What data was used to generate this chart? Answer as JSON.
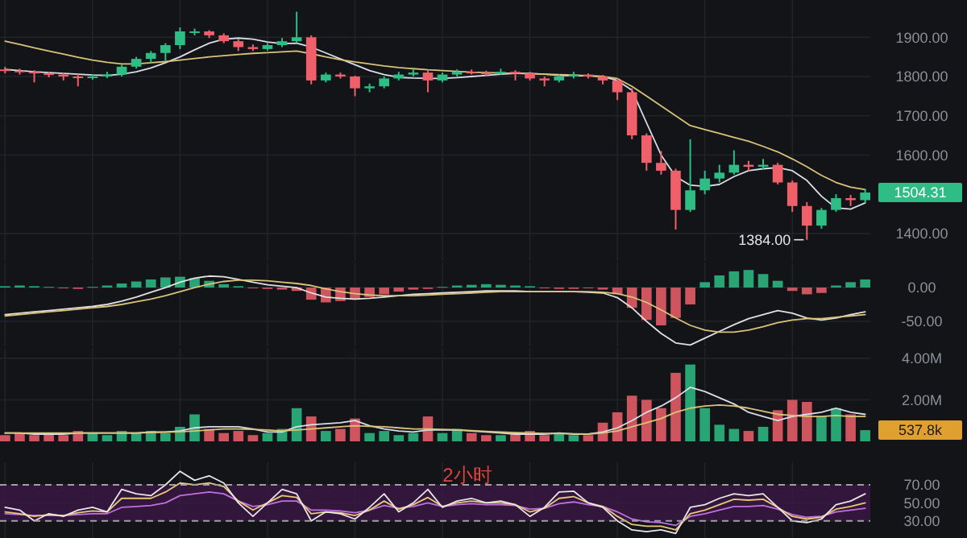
{
  "chart_data": [
    {
      "type": "candlestick",
      "categories": [
        null,
        null,
        null,
        null,
        null,
        null,
        null,
        null,
        null,
        null,
        null,
        null,
        null,
        null,
        null,
        null,
        null,
        null,
        null,
        null,
        null,
        null,
        null,
        null,
        null,
        null,
        null,
        null,
        null,
        null,
        null,
        null,
        null,
        null,
        null,
        null,
        null,
        null,
        null,
        null,
        null,
        null,
        null,
        null,
        null,
        null,
        null,
        null,
        null,
        null,
        null,
        null,
        null,
        null,
        null,
        null,
        null,
        null,
        null,
        null
      ],
      "ohlc": [
        [
          1818,
          1825,
          1808,
          1815
        ],
        [
          1815,
          1820,
          1805,
          1812
        ],
        [
          1812,
          1816,
          1785,
          1808
        ],
        [
          1808,
          1812,
          1798,
          1805
        ],
        [
          1805,
          1810,
          1790,
          1800
        ],
        [
          1800,
          1806,
          1775,
          1798
        ],
        [
          1798,
          1806,
          1792,
          1800
        ],
        [
          1800,
          1812,
          1796,
          1805
        ],
        [
          1805,
          1830,
          1800,
          1825
        ],
        [
          1825,
          1850,
          1820,
          1845
        ],
        [
          1845,
          1865,
          1835,
          1860
        ],
        [
          1860,
          1885,
          1840,
          1880
        ],
        [
          1880,
          1925,
          1870,
          1915
        ],
        [
          1915,
          1922,
          1905,
          1915
        ],
        [
          1915,
          1918,
          1898,
          1905
        ],
        [
          1905,
          1910,
          1885,
          1890
        ],
        [
          1890,
          1895,
          1865,
          1875
        ],
        [
          1875,
          1882,
          1865,
          1870
        ],
        [
          1870,
          1885,
          1866,
          1880
        ],
        [
          1880,
          1898,
          1875,
          1890
        ],
        [
          1890,
          1965,
          1885,
          1900
        ],
        [
          1900,
          1905,
          1780,
          1790
        ],
        [
          1790,
          1810,
          1785,
          1805
        ],
        [
          1805,
          1810,
          1795,
          1800
        ],
        [
          1800,
          1802,
          1750,
          1770
        ],
        [
          1770,
          1782,
          1760,
          1775
        ],
        [
          1775,
          1800,
          1770,
          1795
        ],
        [
          1795,
          1812,
          1790,
          1805
        ],
        [
          1805,
          1820,
          1800,
          1810
        ],
        [
          1810,
          1815,
          1760,
          1790
        ],
        [
          1790,
          1810,
          1785,
          1805
        ],
        [
          1805,
          1818,
          1800,
          1812
        ],
        [
          1812,
          1818,
          1805,
          1810
        ],
        [
          1810,
          1815,
          1802,
          1808
        ],
        [
          1808,
          1820,
          1805,
          1812
        ],
        [
          1812,
          1816,
          1790,
          1808
        ],
        [
          1808,
          1812,
          1790,
          1795
        ],
        [
          1795,
          1800,
          1775,
          1790
        ],
        [
          1790,
          1805,
          1785,
          1800
        ],
        [
          1800,
          1812,
          1795,
          1805
        ],
        [
          1805,
          1808,
          1795,
          1800
        ],
        [
          1800,
          1804,
          1780,
          1790
        ],
        [
          1790,
          1795,
          1740,
          1760
        ],
        [
          1760,
          1770,
          1640,
          1650
        ],
        [
          1650,
          1655,
          1560,
          1580
        ],
        [
          1580,
          1610,
          1550,
          1560
        ],
        [
          1560,
          1565,
          1410,
          1460
        ],
        [
          1460,
          1640,
          1455,
          1510
        ],
        [
          1510,
          1560,
          1500,
          1540
        ],
        [
          1540,
          1575,
          1530,
          1555
        ],
        [
          1555,
          1612,
          1550,
          1575
        ],
        [
          1575,
          1585,
          1560,
          1570
        ],
        [
          1570,
          1590,
          1562,
          1575
        ],
        [
          1575,
          1580,
          1525,
          1530
        ],
        [
          1530,
          1535,
          1455,
          1470
        ],
        [
          1470,
          1480,
          1384,
          1420
        ],
        [
          1420,
          1465,
          1412,
          1460
        ],
        [
          1460,
          1500,
          1455,
          1490
        ],
        [
          1490,
          1498,
          1470,
          1485
        ],
        [
          1485,
          1512,
          1478,
          1504.31
        ]
      ],
      "colors": [
        "#f0606b",
        "#f0606b",
        "#f0606b",
        "#f0606b",
        "#f0606b",
        "#f0606b",
        "#2ebd85",
        "#2ebd85",
        "#2ebd85",
        "#2ebd85",
        "#2ebd85",
        "#2ebd85",
        "#2ebd85",
        "#2ebd85",
        "#f0606b",
        "#f0606b",
        "#f0606b",
        "#f0606b",
        "#2ebd85",
        "#2ebd85",
        "#2ebd85",
        "#f0606b",
        "#2ebd85",
        "#f0606b",
        "#f0606b",
        "#2ebd85",
        "#2ebd85",
        "#2ebd85",
        "#2ebd85",
        "#f0606b",
        "#2ebd85",
        "#2ebd85",
        "#f0606b",
        "#f0606b",
        "#2ebd85",
        "#f0606b",
        "#f0606b",
        "#f0606b",
        "#2ebd85",
        "#2ebd85",
        "#f0606b",
        "#f0606b",
        "#f0606b",
        "#f0606b",
        "#f0606b",
        "#f0606b",
        "#f0606b",
        "#2ebd85",
        "#2ebd85",
        "#2ebd85",
        "#2ebd85",
        "#f0606b",
        "#2ebd85",
        "#f0606b",
        "#f0606b",
        "#f0606b",
        "#2ebd85",
        "#2ebd85",
        "#f0606b",
        "#2ebd85"
      ],
      "series": [
        {
          "type": "line",
          "color": "#d8dde6",
          "values": [
            1818,
            1815,
            1812,
            1810,
            1808,
            1806,
            1804,
            1803,
            1806,
            1812,
            1822,
            1835,
            1850,
            1868,
            1885,
            1895,
            1898,
            1895,
            1888,
            1884,
            1885,
            1875,
            1860,
            1845,
            1830,
            1815,
            1805,
            1798,
            1796,
            1795,
            1795,
            1797,
            1800,
            1803,
            1806,
            1808,
            1808,
            1806,
            1803,
            1802,
            1802,
            1800,
            1790,
            1765,
            1682,
            1600,
            1545,
            1523,
            1520,
            1525,
            1545,
            1560,
            1565,
            1568,
            1560,
            1535,
            1495,
            1465,
            1462,
            1478
          ]
        },
        {
          "type": "line",
          "color": "#d9c27a",
          "values": [
            1890,
            1882,
            1873,
            1865,
            1857,
            1849,
            1842,
            1836,
            1832,
            1832,
            1835,
            1838,
            1842,
            1846,
            1850,
            1853,
            1856,
            1859,
            1861,
            1863,
            1865,
            1858,
            1850,
            1843,
            1837,
            1832,
            1827,
            1823,
            1820,
            1817,
            1815,
            1813,
            1811,
            1810,
            1809,
            1808,
            1807,
            1806,
            1805,
            1804,
            1802,
            1800,
            1795,
            1775,
            1750,
            1725,
            1700,
            1675,
            1665,
            1655,
            1645,
            1635,
            1622,
            1608,
            1590,
            1570,
            1548,
            1530,
            1518,
            1512
          ]
        }
      ],
      "ylim": [
        1330,
        1995
      ],
      "yticks": [
        {
          "value": 1400,
          "label": "1400.00"
        },
        {
          "value": 1600,
          "label": "1600.00"
        },
        {
          "value": 1700,
          "label": "1700.00"
        },
        {
          "value": 1800,
          "label": "1800.00"
        },
        {
          "value": 1900,
          "label": "1900.00"
        }
      ],
      "grid": true,
      "annotations": [
        "1504.31",
        "1384.00"
      ]
    },
    {
      "type": "bar",
      "categories": [
        null,
        null,
        null,
        null,
        null,
        null,
        null,
        null,
        null,
        null,
        null,
        null,
        null,
        null,
        null,
        null,
        null,
        null,
        null,
        null,
        null,
        null,
        null,
        null,
        null,
        null,
        null,
        null,
        null,
        null,
        null,
        null,
        null,
        null,
        null,
        null,
        null,
        null,
        null,
        null,
        null,
        null,
        null,
        null,
        null,
        null,
        null,
        null,
        null,
        null,
        null,
        null,
        null,
        null,
        null,
        null,
        null,
        null,
        null,
        null
      ],
      "series": [
        {
          "type": "bar",
          "values": [
            2,
            3,
            2,
            1,
            -1,
            -2,
            1,
            3,
            6,
            9,
            12,
            15,
            16,
            14,
            10,
            5,
            2,
            -1,
            -2,
            -3,
            -5,
            -18,
            -22,
            -20,
            -18,
            -14,
            -10,
            -6,
            -3,
            -2,
            1,
            3,
            4,
            5,
            4,
            3,
            2,
            -1,
            -2,
            -2,
            -1,
            -3,
            -10,
            -30,
            -48,
            -56,
            -45,
            -25,
            8,
            18,
            24,
            26,
            20,
            10,
            -5,
            -10,
            -8,
            3,
            8,
            12
          ],
          "colors": [
            "#2ebd85",
            "#2ebd85",
            "#2ebd85",
            "#2ebd85",
            "#f0606b",
            "#f0606b",
            "#2ebd85",
            "#2ebd85",
            "#2ebd85",
            "#2ebd85",
            "#2ebd85",
            "#2ebd85",
            "#2ebd85",
            "#2ebd85",
            "#2ebd85",
            "#2ebd85",
            "#2ebd85",
            "#f0606b",
            "#f0606b",
            "#f0606b",
            "#f0606b",
            "#f0606b",
            "#f0606b",
            "#f0606b",
            "#f0606b",
            "#f0606b",
            "#f0606b",
            "#f0606b",
            "#f0606b",
            "#f0606b",
            "#2ebd85",
            "#2ebd85",
            "#2ebd85",
            "#2ebd85",
            "#2ebd85",
            "#2ebd85",
            "#2ebd85",
            "#f0606b",
            "#f0606b",
            "#f0606b",
            "#f0606b",
            "#f0606b",
            "#f0606b",
            "#f0606b",
            "#f0606b",
            "#f0606b",
            "#f0606b",
            "#f0606b",
            "#2ebd85",
            "#2ebd85",
            "#2ebd85",
            "#2ebd85",
            "#2ebd85",
            "#2ebd85",
            "#f0606b",
            "#f0606b",
            "#f0606b",
            "#2ebd85",
            "#2ebd85",
            "#2ebd85"
          ]
        },
        {
          "type": "line",
          "color": "#e0e0e0",
          "values": [
            -40,
            -38,
            -36,
            -34,
            -32,
            -30,
            -28,
            -25,
            -20,
            -14,
            -7,
            0,
            8,
            14,
            17,
            16,
            12,
            8,
            4,
            2,
            0,
            -8,
            -14,
            -16,
            -17,
            -16,
            -14,
            -12,
            -10,
            -9,
            -8,
            -7,
            -6,
            -5,
            -5,
            -5,
            -6,
            -6,
            -6,
            -6,
            -7,
            -8,
            -15,
            -30,
            -50,
            -68,
            -82,
            -85,
            -75,
            -65,
            -55,
            -46,
            -40,
            -34,
            -38,
            -45,
            -48,
            -45,
            -40,
            -36
          ]
        },
        {
          "type": "line",
          "color": "#d9c27a",
          "values": [
            -42,
            -40,
            -38,
            -36,
            -34,
            -32,
            -30,
            -28,
            -25,
            -21,
            -17,
            -12,
            -6,
            0,
            5,
            9,
            11,
            11,
            10,
            8,
            6,
            3,
            -2,
            -6,
            -9,
            -11,
            -12,
            -12,
            -12,
            -11,
            -10,
            -9,
            -8,
            -7,
            -6,
            -6,
            -6,
            -6,
            -6,
            -6,
            -6,
            -7,
            -9,
            -14,
            -22,
            -33,
            -45,
            -56,
            -63,
            -66,
            -66,
            -63,
            -58,
            -52,
            -48,
            -46,
            -46,
            -44,
            -42,
            -40
          ]
        }
      ],
      "ylim": [
        -87,
        37
      ],
      "yticks": [
        {
          "value": -50,
          "label": "-50.00"
        },
        {
          "value": 0,
          "label": "0.00"
        }
      ],
      "grid": true
    },
    {
      "type": "bar",
      "categories": [
        null,
        null,
        null,
        null,
        null,
        null,
        null,
        null,
        null,
        null,
        null,
        null,
        null,
        null,
        null,
        null,
        null,
        null,
        null,
        null,
        null,
        null,
        null,
        null,
        null,
        null,
        null,
        null,
        null,
        null,
        null,
        null,
        null,
        null,
        null,
        null,
        null,
        null,
        null,
        null,
        null,
        null,
        null,
        null,
        null,
        null,
        null,
        null,
        null,
        null,
        null,
        null,
        null,
        null,
        null,
        null,
        null,
        null,
        null,
        null
      ],
      "series": [
        {
          "type": "bar",
          "values": [
            0.3,
            0.4,
            0.3,
            0.4,
            0.3,
            0.5,
            0.4,
            0.3,
            0.5,
            0.4,
            0.5,
            0.4,
            0.7,
            1.3,
            0.6,
            0.4,
            0.5,
            0.3,
            0.4,
            0.6,
            1.6,
            1.2,
            0.5,
            0.6,
            1.1,
            0.4,
            0.5,
            0.3,
            0.4,
            1.2,
            0.4,
            0.6,
            0.4,
            0.3,
            0.3,
            0.4,
            0.5,
            0.3,
            0.4,
            0.3,
            0.3,
            0.9,
            1.4,
            2.2,
            2.0,
            1.6,
            3.3,
            3.7,
            1.6,
            0.8,
            0.6,
            0.5,
            0.7,
            1.5,
            2.0,
            1.9,
            1.2,
            1.6,
            1.3,
            0.54
          ],
          "colors": [
            "#f0606b",
            "#f0606b",
            "#f0606b",
            "#f0606b",
            "#f0606b",
            "#f0606b",
            "#2ebd85",
            "#2ebd85",
            "#2ebd85",
            "#2ebd85",
            "#2ebd85",
            "#2ebd85",
            "#2ebd85",
            "#2ebd85",
            "#f0606b",
            "#f0606b",
            "#f0606b",
            "#f0606b",
            "#2ebd85",
            "#2ebd85",
            "#2ebd85",
            "#f0606b",
            "#2ebd85",
            "#f0606b",
            "#f0606b",
            "#2ebd85",
            "#2ebd85",
            "#2ebd85",
            "#2ebd85",
            "#f0606b",
            "#2ebd85",
            "#2ebd85",
            "#f0606b",
            "#f0606b",
            "#2ebd85",
            "#f0606b",
            "#f0606b",
            "#f0606b",
            "#2ebd85",
            "#2ebd85",
            "#f0606b",
            "#f0606b",
            "#f0606b",
            "#f0606b",
            "#f0606b",
            "#f0606b",
            "#f0606b",
            "#2ebd85",
            "#2ebd85",
            "#2ebd85",
            "#2ebd85",
            "#f0606b",
            "#2ebd85",
            "#f0606b",
            "#f0606b",
            "#f0606b",
            "#2ebd85",
            "#2ebd85",
            "#f0606b",
            "#2ebd85"
          ]
        },
        {
          "type": "line",
          "color": "#d8dde6",
          "values": [
            0.4,
            0.4,
            0.35,
            0.35,
            0.35,
            0.4,
            0.4,
            0.4,
            0.4,
            0.4,
            0.45,
            0.45,
            0.5,
            0.65,
            0.7,
            0.7,
            0.7,
            0.6,
            0.45,
            0.45,
            0.7,
            0.8,
            0.85,
            0.9,
            1.0,
            0.75,
            0.6,
            0.5,
            0.45,
            0.55,
            0.55,
            0.55,
            0.5,
            0.45,
            0.4,
            0.35,
            0.35,
            0.35,
            0.4,
            0.35,
            0.35,
            0.45,
            0.65,
            1.0,
            1.4,
            1.7,
            2.1,
            2.6,
            2.4,
            2.1,
            1.8,
            1.4,
            1.2,
            1.0,
            1.2,
            1.3,
            1.4,
            1.6,
            1.4,
            1.3
          ]
        },
        {
          "type": "line",
          "color": "#d9c27a",
          "values": [
            0.4,
            0.4,
            0.4,
            0.4,
            0.4,
            0.4,
            0.4,
            0.4,
            0.4,
            0.4,
            0.42,
            0.44,
            0.46,
            0.5,
            0.55,
            0.6,
            0.6,
            0.58,
            0.55,
            0.5,
            0.55,
            0.6,
            0.65,
            0.7,
            0.75,
            0.72,
            0.7,
            0.65,
            0.6,
            0.6,
            0.58,
            0.56,
            0.52,
            0.48,
            0.45,
            0.42,
            0.4,
            0.38,
            0.37,
            0.36,
            0.35,
            0.4,
            0.5,
            0.7,
            0.9,
            1.1,
            1.4,
            1.6,
            1.7,
            1.75,
            1.7,
            1.6,
            1.45,
            1.3,
            1.25,
            1.2,
            1.2,
            1.25,
            1.2,
            1.2
          ]
        }
      ],
      "ylim": [
        0,
        4.5
      ],
      "yticks": [
        {
          "value": 2,
          "label": "2.00M"
        },
        {
          "value": 4,
          "label": "4.00M"
        }
      ],
      "grid": true,
      "annotations": [
        "537.8k"
      ]
    },
    {
      "type": "line",
      "categories": [
        null,
        null,
        null,
        null,
        null,
        null,
        null,
        null,
        null,
        null,
        null,
        null,
        null,
        null,
        null,
        null,
        null,
        null,
        null,
        null,
        null,
        null,
        null,
        null,
        null,
        null,
        null,
        null,
        null,
        null,
        null,
        null,
        null,
        null,
        null,
        null,
        null,
        null,
        null,
        null,
        null,
        null,
        null,
        null,
        null,
        null,
        null,
        null,
        null,
        null,
        null,
        null,
        null,
        null,
        null,
        null,
        null,
        null,
        null,
        null
      ],
      "series": [
        {
          "color": "#c070e0",
          "values": [
            38,
            37,
            36,
            36,
            36,
            37,
            38,
            38,
            45,
            46,
            47,
            50,
            58,
            60,
            62,
            60,
            52,
            46,
            48,
            52,
            52,
            42,
            42,
            41,
            39,
            42,
            47,
            44,
            46,
            50,
            46,
            48,
            49,
            48,
            48,
            47,
            43,
            44,
            49,
            51,
            48,
            46,
            40,
            32,
            29,
            28,
            25,
            35,
            38,
            42,
            46,
            46,
            47,
            43,
            37,
            34,
            35,
            40,
            42,
            44
          ]
        },
        {
          "color": "#e8c87a",
          "values": [
            40,
            38,
            35,
            37,
            36,
            39,
            41,
            40,
            55,
            55,
            55,
            62,
            72,
            70,
            72,
            68,
            52,
            42,
            50,
            58,
            56,
            38,
            40,
            39,
            36,
            42,
            52,
            43,
            48,
            56,
            46,
            50,
            52,
            50,
            50,
            48,
            40,
            44,
            55,
            57,
            50,
            46,
            35,
            26,
            24,
            24,
            20,
            38,
            42,
            48,
            54,
            53,
            54,
            45,
            35,
            32,
            34,
            43,
            46,
            50
          ]
        },
        {
          "color": "#e6e6e6",
          "values": [
            45,
            42,
            30,
            38,
            35,
            42,
            45,
            40,
            65,
            60,
            58,
            70,
            85,
            75,
            80,
            72,
            50,
            35,
            50,
            65,
            60,
            30,
            40,
            38,
            32,
            45,
            60,
            40,
            50,
            65,
            45,
            52,
            55,
            50,
            52,
            48,
            35,
            45,
            62,
            63,
            50,
            45,
            30,
            20,
            18,
            20,
            16,
            45,
            48,
            55,
            60,
            58,
            60,
            45,
            30,
            28,
            32,
            48,
            52,
            60
          ]
        }
      ],
      "ylim": [
        11,
        95
      ],
      "yticks": [
        {
          "value": 30,
          "label": "30.00"
        },
        {
          "value": 50,
          "label": "50.00"
        },
        {
          "value": 70,
          "label": "70.00"
        }
      ],
      "grid": true,
      "bands": [
        {
          "axis": "y",
          "from": 30,
          "to": 70,
          "color": "#3b1745"
        }
      ],
      "annotations": [
        "2小时"
      ]
    }
  ]
}
